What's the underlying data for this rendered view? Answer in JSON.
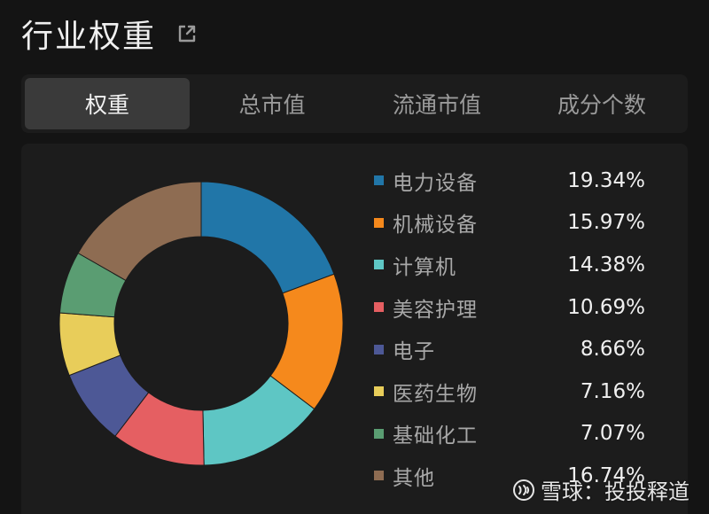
{
  "header": {
    "title": "行业权重",
    "share_icon": "share-icon"
  },
  "tabs": [
    {
      "label": "权重",
      "active": true
    },
    {
      "label": "总市值",
      "active": false
    },
    {
      "label": "流通市值",
      "active": false
    },
    {
      "label": "成分个数",
      "active": false
    }
  ],
  "legend": [
    {
      "name": "电力设备",
      "value": "19.34%"
    },
    {
      "name": "机械设备",
      "value": "15.97%"
    },
    {
      "name": "计算机",
      "value": "14.38%"
    },
    {
      "name": "美容护理",
      "value": "10.69%"
    },
    {
      "name": "电子",
      "value": "8.66%"
    },
    {
      "name": "医药生物",
      "value": "7.16%"
    },
    {
      "name": "基础化工",
      "value": "7.07%"
    },
    {
      "name": "其他",
      "value": "16.74%"
    }
  ],
  "chart_data": {
    "type": "pie",
    "categories": [
      "电力设备",
      "机械设备",
      "计算机",
      "美容护理",
      "电子",
      "医药生物",
      "基础化工",
      "其他"
    ],
    "values": [
      19.34,
      15.97,
      14.38,
      10.69,
      8.66,
      7.16,
      7.07,
      16.74
    ],
    "colors": [
      "#2176a8",
      "#f5891c",
      "#5ec6c4",
      "#e55f62",
      "#4d5896",
      "#e8cd5a",
      "#5a9d72",
      "#8e6c52"
    ],
    "title": "",
    "style": "donut",
    "legend": "right"
  },
  "watermark": {
    "text": "雪球：投投释道"
  }
}
